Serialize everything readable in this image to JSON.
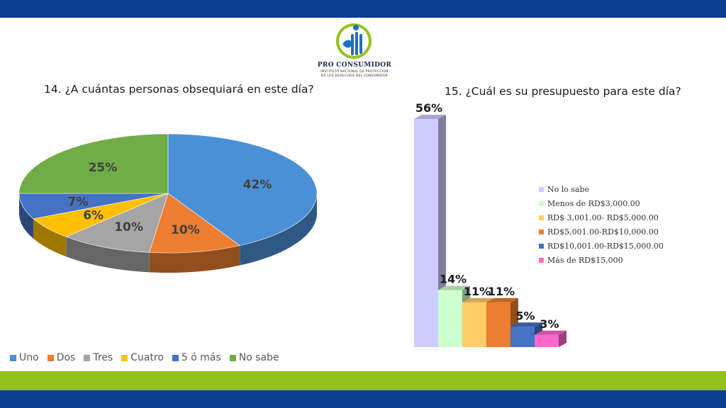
{
  "logo": {
    "name": "PRO CONSUMIDOR",
    "subtitle_line1": "INSTITUTO NACIONAL DE PROTECCIÓN",
    "subtitle_line2": "DE LOS DERECHOS DEL CONSUMIDOR"
  },
  "chart_data": [
    {
      "type": "pie",
      "title": "14. ¿A cuántas personas obsequiará en este día?",
      "categories": [
        "Uno",
        "Dos",
        "Tres",
        "Cuatro",
        "5 ó más",
        "No sabe"
      ],
      "values": [
        42,
        10,
        10,
        6,
        7,
        25
      ],
      "labels": [
        "42%",
        "10%",
        "10%",
        "6%",
        "7%",
        "25%"
      ],
      "colors": [
        "#4a90d6",
        "#ed7d31",
        "#a5a5a5",
        "#ffc000",
        "#4472c4",
        "#70ad47"
      ],
      "legend": "bottom"
    },
    {
      "type": "bar",
      "title": "15. ¿Cuál es su presupuesto para este día?",
      "categories": [
        "No lo sabe",
        "Menos de RD$3,000.00",
        "RD$ 3,001.00- RD$5,000.00",
        "RD$5,001.00-RD$10,000.00",
        "RD$10,001.00-RD$15,000.00",
        "Más de RD$15,000"
      ],
      "values": [
        56,
        14,
        11,
        11,
        5,
        3
      ],
      "labels": [
        "56%",
        "14%",
        "11%",
        "11%",
        "5%",
        "3%"
      ],
      "colors": [
        "#ccccff",
        "#ccffcc",
        "#ffcc66",
        "#ed7d31",
        "#4472c4",
        "#ff66cc"
      ],
      "legend": "right"
    }
  ]
}
